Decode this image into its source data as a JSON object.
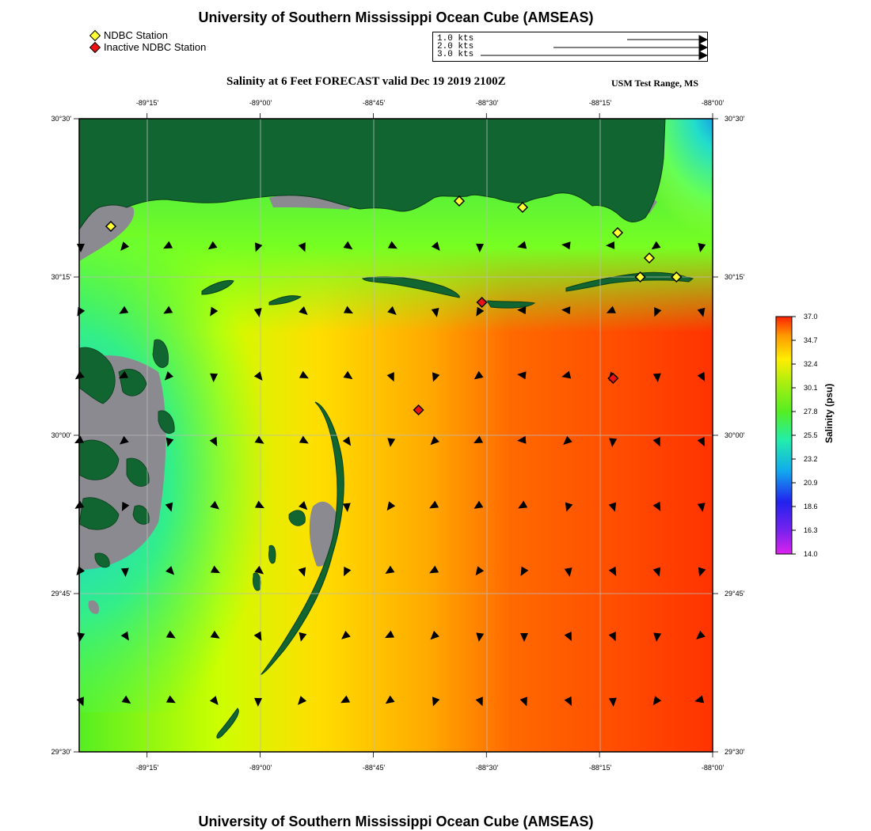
{
  "header": {
    "title": "University of Southern Mississippi Ocean Cube (AMSEAS)",
    "subtitle": "Salinity at 6 Feet FORECAST valid Dec 19 2019 2100Z",
    "range_label": "USM Test Range, MS"
  },
  "footer": {
    "title": "University of Southern Mississippi Ocean Cube (AMSEAS)"
  },
  "legend": {
    "active_label": "NDBC Station",
    "inactive_label": "Inactive NDBC Station",
    "active_color": "#ffff33",
    "inactive_color": "#ee1111"
  },
  "current_scale": {
    "labels": [
      "1.0 kts",
      "2.0 kts",
      "3.0 kts"
    ],
    "speeds_kts": [
      1.0,
      2.0,
      3.0
    ]
  },
  "map": {
    "lon_ticks": [
      "-89°15'",
      "-89°00'",
      "-88°45'",
      "-88°30'",
      "-88°15'",
      "-88°00'"
    ],
    "lon_values": [
      -89.25,
      -89.0,
      -88.75,
      -88.5,
      -88.25,
      -88.0
    ],
    "lat_ticks": [
      "30°30'",
      "30°15'",
      "30°00'",
      "29°45'",
      "29°30'"
    ],
    "lat_values": [
      30.5,
      30.25,
      30.0,
      29.75,
      29.5
    ],
    "lon_range": [
      -89.4,
      -88.0
    ],
    "lat_range": [
      29.5,
      30.5
    ],
    "land_color": "#106530",
    "marsh_color": "#8a8a90",
    "active_stations": [
      {
        "lon": -89.33,
        "lat": 30.33
      },
      {
        "lon": -88.56,
        "lat": 30.37
      },
      {
        "lon": -88.42,
        "lat": 30.36
      },
      {
        "lon": -88.21,
        "lat": 30.32
      },
      {
        "lon": -88.16,
        "lat": 30.25
      },
      {
        "lon": -88.14,
        "lat": 30.28
      },
      {
        "lon": -88.08,
        "lat": 30.25
      }
    ],
    "inactive_stations": [
      {
        "lon": -88.51,
        "lat": 30.21
      },
      {
        "lon": -88.65,
        "lat": 30.04
      },
      {
        "lon": -88.22,
        "lat": 30.09
      }
    ]
  },
  "colorbar": {
    "label": "Salinity (psu)",
    "ticks": [
      "37.0",
      "34.7",
      "32.4",
      "30.1",
      "27.8",
      "25.5",
      "23.2",
      "20.9",
      "18.6",
      "16.3",
      "14.0"
    ],
    "min": 14.0,
    "max": 37.0
  }
}
